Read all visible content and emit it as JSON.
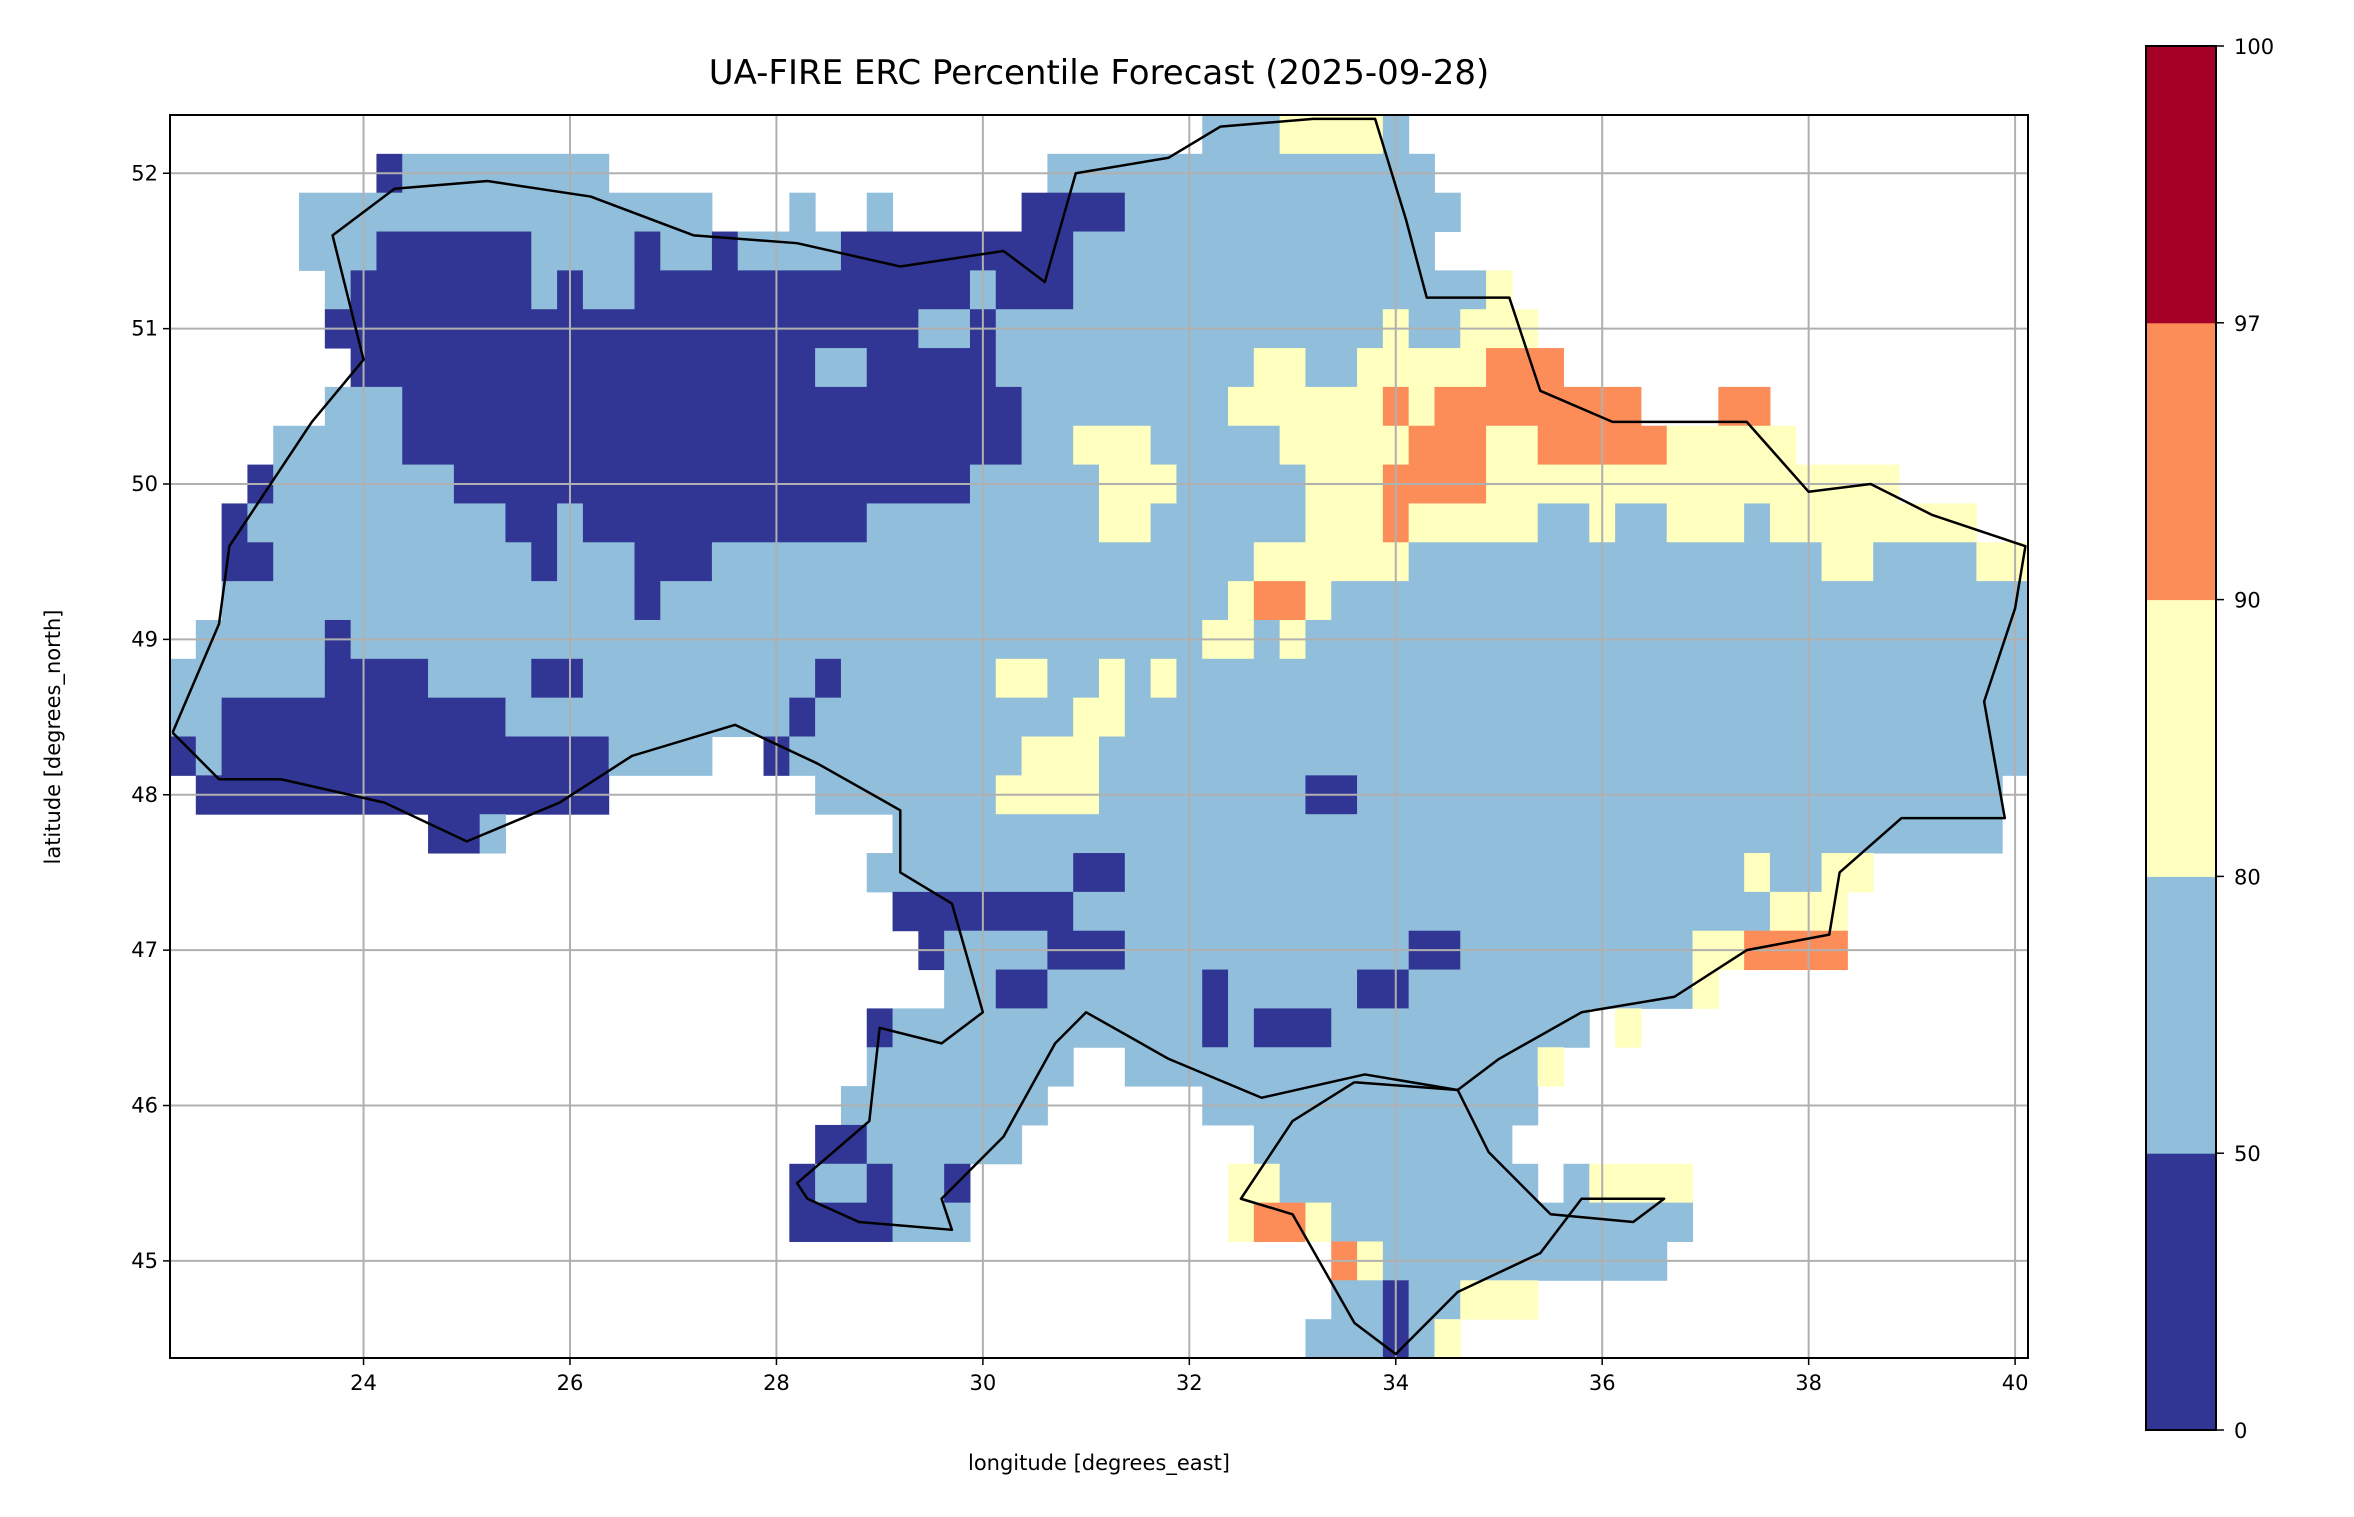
{
  "chart_data": {
    "type": "heatmap",
    "title": "UA-FIRE ERC Percentile Forecast (2025-09-28)",
    "xlabel": "longitude [degrees_east]",
    "ylabel": "latitude [degrees_north]",
    "xlim": [
      22.125,
      40.125
    ],
    "ylim": [
      44.375,
      52.375
    ],
    "grid": true,
    "x_ticks": [
      "24",
      "26",
      "28",
      "30",
      "32",
      "34",
      "36",
      "38",
      "40"
    ],
    "x_tick_values": [
      24,
      26,
      28,
      30,
      32,
      34,
      36,
      38,
      40
    ],
    "y_ticks": [
      "45",
      "46",
      "47",
      "48",
      "49",
      "50",
      "51",
      "52"
    ],
    "y_tick_values": [
      45,
      46,
      47,
      48,
      49,
      50,
      51,
      52
    ],
    "cell_size_deg": 0.25,
    "grid_origin_top_left": [
      22.125,
      52.375
    ],
    "categories": {
      "D": {
        "range": [
          0,
          50
        ],
        "color": "#313695"
      },
      "B": {
        "range": [
          50,
          80
        ],
        "color": "#91bfdb"
      },
      "Y": {
        "range": [
          80,
          90
        ],
        "color": "#ffffbf"
      },
      "O": {
        "range": [
          90,
          97
        ],
        "color": "#fc8d59"
      },
      "R": {
        "range": [
          97,
          100
        ],
        "color": "#a50026"
      },
      ".": {
        "range": null,
        "color": "none"
      }
    },
    "rows_rle_north_to_south": [
      "40. 3B 4Y 1B 24.",
      "8. 1D 8B 17. 15B 23.",
      "5. 16B 3. 1B 2. 1B 5. 4D 13B 22.",
      "5. 3B 6D 4B 1D 2B 1D 4B 9D 14B 23.",
      "6. 1B 7D 1B 1D 2B 13D 1B 3D 16B 1Y 20.",
      "6. 23D 2B 1D 15B 1Y 2B 3Y 19.",
      "7. 18D 2B 5D 10B 2Y 2B 5Y 3O 18.",
      "6. 3B 24D 8B 6Y 1O 1Y 8O 3. 2O 10.",
      "4. 5B 24D 2B 3Y 5B 5Y 3O 2Y 5O 5Y 9.",
      "3. 1D 7B 20D 5B 3Y 5B 3Y 4O 16Y 5.",
      "2. 1D 10B 2D 1B 11D 9B 2Y 6B 3Y 1O 5Y 2B 1Y 2B 3Y 1B 8Y 2.",
      "2. 2D 10B 1D 3B 3D 21B 6Y 16B 2Y 4B 2Y",
      "2. 16B 1D 22B 1Y 2O 1Y 27B",
      "1. 5B 1D 33B 2Y 1B 1Y 28B",
      "6B 4D 4B 2D 9B 1D 6B 2Y 2B 1Y 1B 1Y 33B",
      "2B 11D 11B 1D 10B 2Y 35B",
      "1D 1B 15D 4B 2. 1D 9B 3Y 36B",
      "1. 16D 8. 7B 4Y 8B 2D 25B 1.",
      "10. 2D 1B 15. 43B 1.",
      "27. 8B 2D 24B 1Y 2B 2Y 6.",
      "28. 7D 27B 3Y 7.",
      "29. 1D 4B 3D 11B 2D 9B 2Y 4O 7.",
      "30. 2B 2D 6B 1D 5B 2D 11B 1Y 12.",
      "27. 1D 12B 1D 1B 3D 10B 1. 1Y 15.",
      "27. 8B 2. 16B 1Y 18.",
      "26. 8B 6. 13B 19.",
      "25. 2D 6B 9. 10B 20.",
      "24. 1D 2B 1D 2B 1D 10. 2Y 10B 1. 1B 4Y 13.",
      "24. 4D 3B 10. 1Y 2O 1Y 14B 13.",
      "45. 1O 1Y 11B 14.",
      "45. 2B 1D 2B 3Y 19.",
      "44. 3B 1D 1B 1Y 22."
    ],
    "colorbar": {
      "boundaries": [
        0,
        50,
        80,
        90,
        97,
        100
      ],
      "tick_labels": [
        "0",
        "50",
        "80",
        "90",
        "97",
        "100"
      ],
      "colors": [
        "#313695",
        "#91bfdb",
        "#ffffbf",
        "#fc8d59",
        "#a50026"
      ],
      "placement": "right"
    },
    "grid_color": "#b0b0b0",
    "border_color": "#000000"
  }
}
